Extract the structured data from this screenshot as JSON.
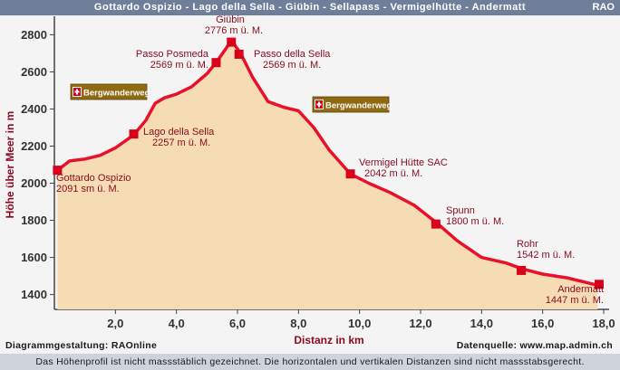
{
  "header": {
    "title": "Gottardo Ospizio - Lago della Sella - Giübin - Sellapass - Vermigelhütte - Andermatt",
    "tag": "RAO"
  },
  "footer": {
    "credit_left": "Diagrammgestaltung: RAOnline",
    "credit_right": "Datenquelle: www.map.admin.ch",
    "note": "Das Höhenprofil ist nicht massstäblich gezeichnet. Die horizontalen und vertikalen Distanzen sind nicht massstabsgerecht."
  },
  "signs": [
    {
      "label": "Bergwanderweg",
      "icon": "swiss-cross-icon"
    },
    {
      "label": "Bergwanderweg",
      "icon": "swiss-cross-icon"
    }
  ],
  "colors": {
    "line": "#e8102a",
    "fill": "#f6dcb4",
    "marker": "#d8001a",
    "text": "#8b0a1e",
    "sign": "#8f6a12",
    "title_bar": "#6f7f99"
  },
  "chart_data": {
    "type": "area",
    "xlabel": "Distanz in km",
    "ylabel": "Höhe über Meer in m",
    "xlim": [
      0,
      18
    ],
    "ylim": [
      1320,
      2880
    ],
    "xticks": [
      2,
      4,
      6,
      8,
      10,
      12,
      14,
      16,
      18
    ],
    "xtick_labels": [
      "2,0",
      "4,0",
      "6,0",
      "8,0",
      "10,0",
      "12,0",
      "14,0",
      "16,0",
      "18,0"
    ],
    "yticks": [
      1400,
      1600,
      1800,
      2000,
      2200,
      2400,
      2600,
      2800
    ],
    "yticks_labels": [
      "1400",
      "1600",
      "1800",
      "2000",
      "2200",
      "2400",
      "2600",
      "2800"
    ],
    "grid": false,
    "profile": {
      "x": [
        0.1,
        0.5,
        1.0,
        1.5,
        2.0,
        2.6,
        3.0,
        3.3,
        3.6,
        4.0,
        4.5,
        5.0,
        5.3,
        5.6,
        5.8,
        6.1,
        6.5,
        7.0,
        7.5,
        8.0,
        8.5,
        9.0,
        9.7,
        10.3,
        11.0,
        11.8,
        12.5,
        13.2,
        14.0,
        14.8,
        15.3,
        16.0,
        16.8,
        17.3,
        17.8
      ],
      "y": [
        2070,
        2120,
        2130,
        2150,
        2190,
        2260,
        2340,
        2430,
        2460,
        2480,
        2520,
        2590,
        2650,
        2720,
        2770,
        2700,
        2570,
        2440,
        2410,
        2390,
        2300,
        2180,
        2050,
        2000,
        1950,
        1880,
        1790,
        1690,
        1600,
        1570,
        1540,
        1510,
        1490,
        1470,
        1450
      ]
    },
    "waypoints": [
      {
        "x": 0.1,
        "y": 2070,
        "name": "Gottardo Ospizio",
        "elev": "2091 sm ü. M."
      },
      {
        "x": 2.6,
        "y": 2265,
        "name": "Lago della Sella",
        "elev": "2257 m ü. M."
      },
      {
        "x": 5.3,
        "y": 2650,
        "name": "Passo Posmeda",
        "elev": "2569 m ü. M."
      },
      {
        "x": 5.8,
        "y": 2760,
        "name": "Giübin",
        "elev": "2776 m ü. M."
      },
      {
        "x": 6.05,
        "y": 2695,
        "name": "Passo della Sella",
        "elev": "2569 m ü. M."
      },
      {
        "x": 9.7,
        "y": 2050,
        "name": "Vermigel Hütte SAC",
        "elev": "2042 m ü. M."
      },
      {
        "x": 12.5,
        "y": 1780,
        "name": "Spunn",
        "elev": "1800 m ü. M."
      },
      {
        "x": 15.3,
        "y": 1530,
        "name": "Rohr",
        "elev": "1542 m ü. M."
      },
      {
        "x": 17.85,
        "y": 1455,
        "name": "Andermatt",
        "elev": "1447 m ü. M."
      }
    ]
  }
}
